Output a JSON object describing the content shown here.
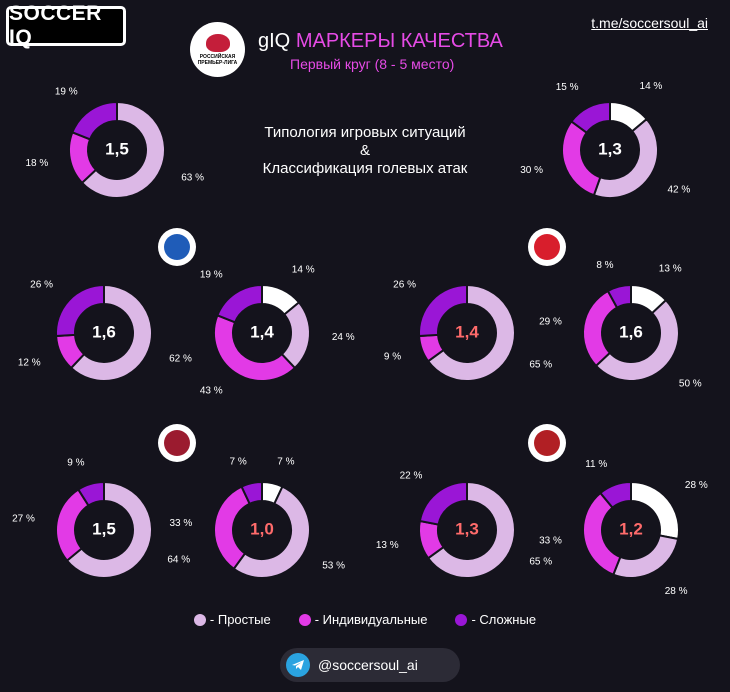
{
  "header": {
    "logo_text": "SOCCER IQ",
    "channel": "t.me/soccersoul_ai",
    "title_prefix": "gIQ",
    "title_main": "МАРКЕРЫ КАЧЕСТВА",
    "subtitle": "Первый круг (8 - 5 место)",
    "center_line1": "Типология игровых ситуаций",
    "center_line2": "&",
    "center_line3": "Классификация голевых атак",
    "league_badge_text": "РОССИЙСКАЯ ПРЕМЬЕР-ЛИГА"
  },
  "colors": {
    "simple": "#dcb8e6",
    "individual": "#e23ae6",
    "complex": "#9a16d6",
    "center": "#14131c",
    "value_white": "#ffffff",
    "value_red": "#ff6b6b"
  },
  "legend": [
    {
      "label": "- Простые",
      "color": "#dcb8e6"
    },
    {
      "label": "- Индивидуальные",
      "color": "#e23ae6"
    },
    {
      "label": "- Сложные",
      "color": "#9a16d6"
    }
  ],
  "chart_data": [
    {
      "type": "pie",
      "center_value": "1,5",
      "value_color": "white",
      "series": [
        {
          "name": "Простые",
          "value": 63
        },
        {
          "name": "Индивидуальные",
          "value": 18
        },
        {
          "name": "Сложные",
          "value": 19
        }
      ]
    },
    {
      "type": "pie",
      "center_value": "1,3",
      "value_color": "white",
      "series": [
        {
          "name": "Простые",
          "value": 42
        },
        {
          "name": "Индивидуальные",
          "value": 30
        },
        {
          "name": "Сложные",
          "value": 15
        }
      ],
      "other": 14
    },
    {
      "type": "pie",
      "center_value": "1,6",
      "value_color": "white",
      "series": [
        {
          "name": "Простые",
          "value": 62
        },
        {
          "name": "Индивидуальные",
          "value": 12
        },
        {
          "name": "Сложные",
          "value": 26
        }
      ]
    },
    {
      "type": "pie",
      "center_value": "1,4",
      "value_color": "white",
      "series": [
        {
          "name": "Простые",
          "value": 24
        },
        {
          "name": "Индивидуальные",
          "value": 43
        },
        {
          "name": "Сложные",
          "value": 19
        }
      ],
      "other": 14
    },
    {
      "type": "pie",
      "center_value": "1,4",
      "value_color": "red",
      "series": [
        {
          "name": "Простые",
          "value": 65
        },
        {
          "name": "Индивидуальные",
          "value": 9
        },
        {
          "name": "Сложные",
          "value": 26
        }
      ]
    },
    {
      "type": "pie",
      "center_value": "1,6",
      "value_color": "white",
      "series": [
        {
          "name": "Простые",
          "value": 50
        },
        {
          "name": "Индивидуальные",
          "value": 29
        },
        {
          "name": "Сложные",
          "value": 8
        }
      ],
      "other": 13
    },
    {
      "type": "pie",
      "center_value": "1,5",
      "value_color": "white",
      "series": [
        {
          "name": "Простые",
          "value": 64
        },
        {
          "name": "Индивидуальные",
          "value": 27
        },
        {
          "name": "Сложные",
          "value": 9
        }
      ]
    },
    {
      "type": "pie",
      "center_value": "1,0",
      "value_color": "red",
      "series": [
        {
          "name": "Простые",
          "value": 53
        },
        {
          "name": "Индивидуальные",
          "value": 33
        },
        {
          "name": "Сложные",
          "value": 7
        }
      ],
      "other": 7
    },
    {
      "type": "pie",
      "center_value": "1,3",
      "value_color": "red",
      "series": [
        {
          "name": "Простые",
          "value": 65
        },
        {
          "name": "Индивидуальные",
          "value": 13
        },
        {
          "name": "Сложные",
          "value": 22
        }
      ]
    },
    {
      "type": "pie",
      "center_value": "1,2",
      "value_color": "red",
      "series": [
        {
          "name": "Простые",
          "value": 28
        },
        {
          "name": "Индивидуальные",
          "value": 33
        },
        {
          "name": "Сложные",
          "value": 11
        }
      ],
      "other": 28
    }
  ],
  "footer": {
    "handle": "@soccersoul_ai"
  }
}
